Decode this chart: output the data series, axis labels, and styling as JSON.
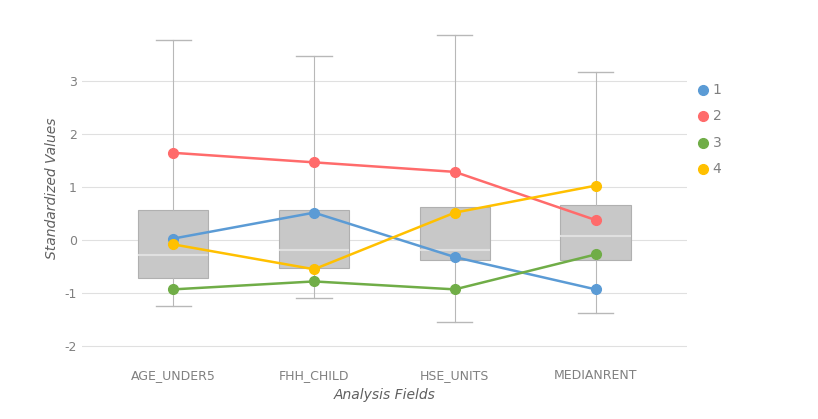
{
  "categories": [
    "AGE_UNDER5",
    "FHH_CHILD",
    "HSE_UNITS",
    "MEDIANRENT"
  ],
  "box_stats": [
    {
      "whislo": -1.25,
      "q1": -0.72,
      "med": -0.28,
      "q3": 0.57,
      "whishi": 3.78
    },
    {
      "whislo": -1.1,
      "q1": -0.52,
      "med": -0.18,
      "q3": 0.57,
      "whishi": 3.48
    },
    {
      "whislo": -1.55,
      "q1": -0.38,
      "med": -0.18,
      "q3": 0.62,
      "whishi": 3.88
    },
    {
      "whislo": -1.38,
      "q1": -0.38,
      "med": 0.08,
      "q3": 0.67,
      "whishi": 3.18
    }
  ],
  "cluster1": [
    0.03,
    0.52,
    -0.32,
    -0.93
  ],
  "cluster2": [
    1.65,
    1.47,
    1.29,
    0.38
  ],
  "cluster3": [
    -0.93,
    -0.78,
    -0.93,
    -0.27
  ],
  "cluster4": [
    -0.08,
    -0.55,
    0.52,
    1.03
  ],
  "color1": "#5B9BD5",
  "color2": "#FF6B6B",
  "color3": "#70AD47",
  "color4": "#FFC000",
  "box_facecolor": "#C8C8C8",
  "box_edgecolor": "#B0B0B0",
  "whisker_color": "#B8B8B8",
  "cap_color": "#B8B8B8",
  "median_color": "#E0E0E0",
  "xlabel": "Analysis Fields",
  "ylabel": "Standardized Values",
  "ylim": [
    -2.35,
    4.3
  ],
  "yticks": [
    -2,
    -1,
    0,
    1,
    2,
    3
  ],
  "background_color": "#FFFFFF",
  "grid_color": "#E0E0E0",
  "tick_label_color": "#808080",
  "axis_label_color": "#606060"
}
